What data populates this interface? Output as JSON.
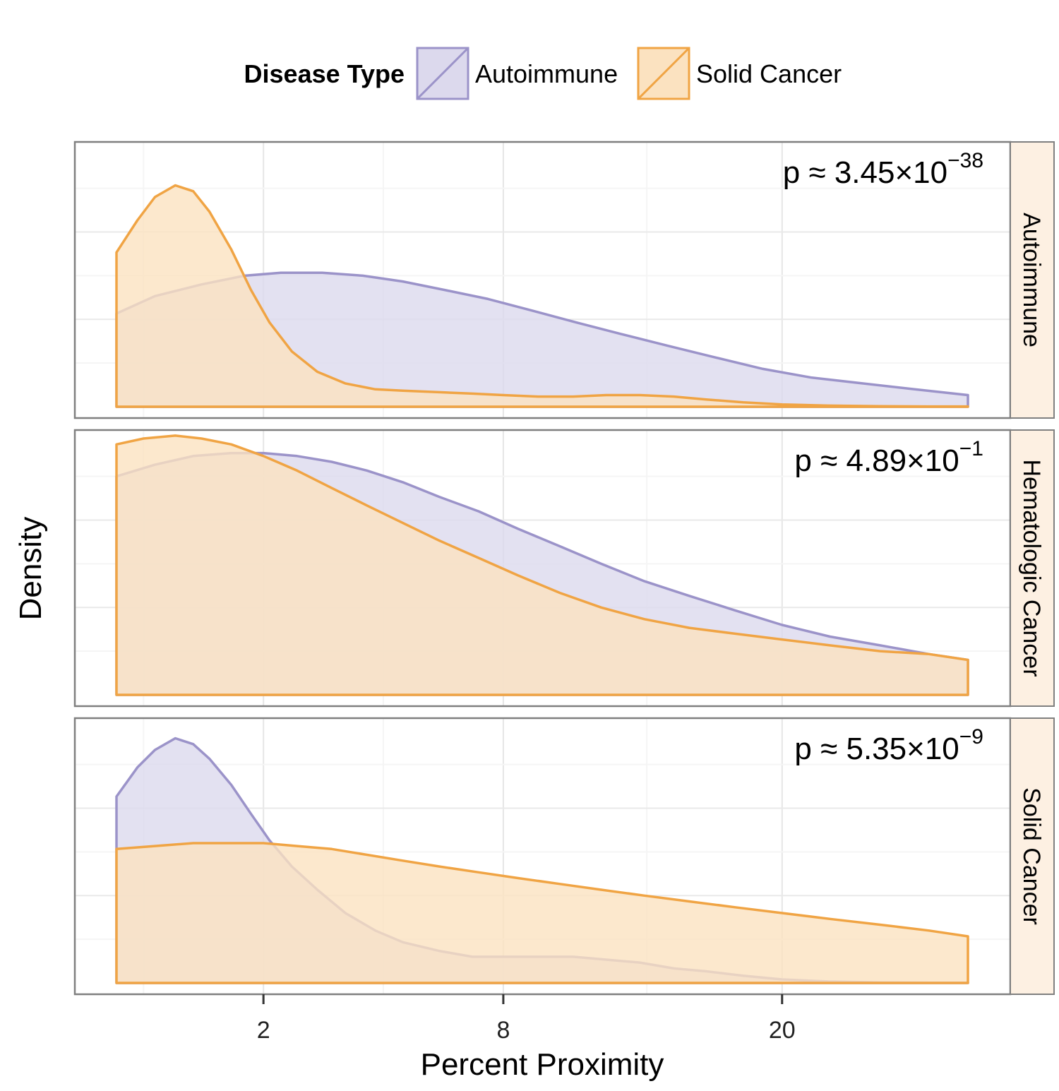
{
  "legend": {
    "title": "Disease Type",
    "items": [
      {
        "label": "Autoimmune",
        "stroke": "#9b93c9",
        "fill": "#dcd9ed"
      },
      {
        "label": "Solid Cancer",
        "stroke": "#f0a444",
        "fill": "#fbe2c0"
      }
    ]
  },
  "chart_data": {
    "type": "area",
    "xlabel": "Percent Proximity",
    "ylabel": "Density",
    "x_scale": "sqrt",
    "xlim": [
      0.3,
      31
    ],
    "x_ticks": [
      2,
      8,
      20
    ],
    "legend_position": "top",
    "grid": true,
    "y_ticks_shown": false,
    "panels": [
      {
        "strip": "Autoimmune",
        "p_value": {
          "prefix": "p",
          "approx": "≈",
          "mantissa": "3.45",
          "times": "×",
          "base": "10",
          "exponent": "−38"
        },
        "series": [
          {
            "name": "Autoimmune",
            "x": [
              0.3,
              0.6,
              1.1,
              1.7,
              2.3,
              3.1,
              4.0,
              5.0,
              6.2,
              7.5,
              9.0,
              10.6,
              12.4,
              14.4,
              16.6,
              19.0,
              21.6,
              24.5,
              27.6,
              31.0
            ],
            "y": [
              0.32,
              0.38,
              0.42,
              0.45,
              0.46,
              0.46,
              0.45,
              0.43,
              0.4,
              0.37,
              0.33,
              0.29,
              0.25,
              0.21,
              0.17,
              0.13,
              0.1,
              0.08,
              0.06,
              0.04
            ]
          },
          {
            "name": "Solid Cancer",
            "x": [
              0.3,
              0.45,
              0.6,
              0.8,
              1.0,
              1.2,
              1.5,
              1.8,
              2.1,
              2.5,
              3.0,
              3.6,
              4.3,
              5.0,
              6.0,
              7.0,
              8.0,
              9.2,
              10.5,
              11.8,
              13.2,
              14.7,
              16.2,
              18.0,
              20.0,
              22.5,
              25.5,
              28.5,
              31.0
            ],
            "y": [
              0.53,
              0.64,
              0.72,
              0.76,
              0.74,
              0.67,
              0.54,
              0.4,
              0.29,
              0.19,
              0.12,
              0.08,
              0.06,
              0.055,
              0.05,
              0.045,
              0.04,
              0.035,
              0.035,
              0.04,
              0.04,
              0.035,
              0.025,
              0.015,
              0.008,
              0.004,
              0.002,
              0.001,
              0.001
            ]
          }
        ]
      },
      {
        "strip": "Hematologic Cancer",
        "p_value": {
          "prefix": "p",
          "approx": "≈",
          "mantissa": "4.89",
          "times": "×",
          "base": "10",
          "exponent": "−1"
        },
        "series": [
          {
            "name": "Autoimmune",
            "x": [
              0.3,
              0.6,
              1.0,
              1.5,
              2.0,
              2.6,
              3.3,
              4.1,
              5.0,
              6.0,
              7.2,
              8.5,
              10.0,
              11.6,
              13.4,
              15.4,
              17.6,
              20.0,
              22.6,
              25.5,
              28.5,
              31.0
            ],
            "y": [
              0.75,
              0.79,
              0.82,
              0.83,
              0.83,
              0.82,
              0.8,
              0.77,
              0.73,
              0.68,
              0.63,
              0.57,
              0.51,
              0.45,
              0.39,
              0.34,
              0.29,
              0.24,
              0.2,
              0.17,
              0.14,
              0.12
            ]
          },
          {
            "name": "Solid Cancer",
            "x": [
              0.3,
              0.5,
              0.8,
              1.1,
              1.5,
              2.0,
              2.6,
              3.3,
              4.1,
              5.0,
              6.0,
              7.2,
              8.5,
              10.0,
              11.6,
              13.4,
              15.4,
              17.6,
              20.0,
              22.6,
              25.5,
              28.5,
              31.0
            ],
            "y": [
              0.86,
              0.88,
              0.89,
              0.88,
              0.86,
              0.82,
              0.77,
              0.71,
              0.65,
              0.59,
              0.53,
              0.47,
              0.41,
              0.35,
              0.3,
              0.26,
              0.23,
              0.21,
              0.19,
              0.17,
              0.15,
              0.14,
              0.12
            ]
          }
        ]
      },
      {
        "strip": "Solid Cancer",
        "p_value": {
          "prefix": "p",
          "approx": "≈",
          "mantissa": "5.35",
          "times": "×",
          "base": "10",
          "exponent": "−9"
        },
        "series": [
          {
            "name": "Autoimmune",
            "x": [
              0.3,
              0.45,
              0.6,
              0.8,
              1.0,
              1.2,
              1.5,
              1.8,
              2.1,
              2.5,
              3.0,
              3.6,
              4.3,
              5.0,
              6.0,
              7.0,
              8.0,
              9.2,
              10.5,
              11.8,
              13.2,
              14.7,
              16.2,
              18.0,
              20.0,
              22.5,
              25.5,
              28.5,
              31.0
            ],
            "y": [
              0.64,
              0.74,
              0.8,
              0.84,
              0.82,
              0.77,
              0.68,
              0.58,
              0.49,
              0.4,
              0.32,
              0.24,
              0.18,
              0.14,
              0.11,
              0.09,
              0.09,
              0.09,
              0.09,
              0.08,
              0.07,
              0.05,
              0.04,
              0.025,
              0.012,
              0.005,
              0.002,
              0.001,
              0.001
            ]
          },
          {
            "name": "Solid Cancer",
            "x": [
              0.3,
              0.6,
              1.0,
              1.5,
              2.0,
              2.6,
              3.3,
              4.1,
              5.0,
              6.0,
              7.2,
              8.5,
              10.0,
              11.6,
              13.4,
              15.4,
              17.6,
              20.0,
              22.6,
              25.5,
              28.5,
              31.0
            ],
            "y": [
              0.46,
              0.47,
              0.48,
              0.48,
              0.48,
              0.47,
              0.46,
              0.44,
              0.42,
              0.4,
              0.38,
              0.36,
              0.34,
              0.32,
              0.3,
              0.28,
              0.26,
              0.24,
              0.22,
              0.2,
              0.18,
              0.16
            ]
          }
        ]
      }
    ]
  }
}
